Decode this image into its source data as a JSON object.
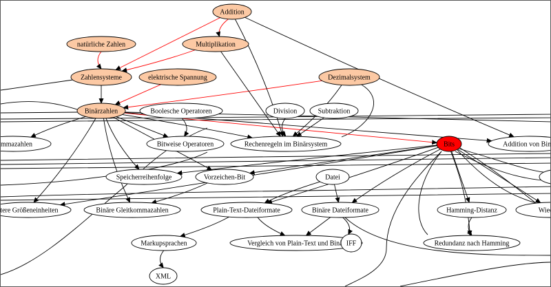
{
  "colors": {
    "highlight_fill": "#fcc9a4",
    "focus_fill": "#ff0000",
    "default_fill": "#ffffff",
    "highlight_edge": "#ff0000",
    "edge": "#000000"
  },
  "nodes": [
    {
      "id": "addition",
      "label": "Addition",
      "style": "highlight"
    },
    {
      "id": "natuerliche",
      "label": "natürliche Zahlen",
      "style": "highlight"
    },
    {
      "id": "multiplikation",
      "label": "Multiplikation",
      "style": "highlight"
    },
    {
      "id": "zahlensysteme",
      "label": "Zahlensysteme",
      "style": "highlight"
    },
    {
      "id": "spannung",
      "label": "elektrische Spannung",
      "style": "highlight"
    },
    {
      "id": "dezimal",
      "label": "Dezimalsystem",
      "style": "highlight"
    },
    {
      "id": "binaerzahlen",
      "label": "Binärzahlen",
      "style": "highlight"
    },
    {
      "id": "boolesche",
      "label": "Boolesche Operatoren",
      "style": "default"
    },
    {
      "id": "division",
      "label": "Division",
      "style": "default"
    },
    {
      "id": "subtraktion",
      "label": "Subtraktion",
      "style": "default"
    },
    {
      "id": "kommazahlen",
      "label": "kommazahlen",
      "style": "default"
    },
    {
      "id": "bitweise",
      "label": "Bitweise Operatoren",
      "style": "default"
    },
    {
      "id": "rechenregeln",
      "label": "Rechenregeln im Binärsystem",
      "style": "default"
    },
    {
      "id": "bits",
      "label": "Bits",
      "style": "focus"
    },
    {
      "id": "additionbin",
      "label": "Addition von Binär",
      "style": "default"
    },
    {
      "id": "speicher",
      "label": "Speicherreihenfolge",
      "style": "default"
    },
    {
      "id": "vorzeichen",
      "label": "Vorzeichen-Bit",
      "style": "default"
    },
    {
      "id": "datei",
      "label": "Datei",
      "style": "default"
    },
    {
      "id": "rightnode",
      "label": "",
      "style": "default"
    },
    {
      "id": "groessen",
      "label": "itere Größeneinheiten",
      "style": "default"
    },
    {
      "id": "gleitkomma",
      "label": "Binäre Gleitkommazahlen",
      "style": "default"
    },
    {
      "id": "plaintext",
      "label": "Plain-Text-Dateiformate",
      "style": "default"
    },
    {
      "id": "binaerdatei",
      "label": "Binäre Dateiformate",
      "style": "default"
    },
    {
      "id": "hamming",
      "label": "Hamming-Distanz",
      "style": "default"
    },
    {
      "id": "wiederbe",
      "label": "Wiederbe",
      "style": "default"
    },
    {
      "id": "markup",
      "label": "Markupsprachen",
      "style": "default"
    },
    {
      "id": "vergleich",
      "label": "Vergleich von Plain-Text und Binär",
      "style": "default"
    },
    {
      "id": "iff",
      "label": "IFF",
      "style": "default"
    },
    {
      "id": "redundanz",
      "label": "Redundanz nach Hamming",
      "style": "default"
    },
    {
      "id": "xml",
      "label": "XML",
      "style": "default"
    }
  ],
  "edges": [
    {
      "from": "addition",
      "to": "multiplikation",
      "highlight": true
    },
    {
      "from": "addition",
      "to": "zahlensysteme",
      "highlight": true
    },
    {
      "from": "multiplikation",
      "to": "zahlensysteme",
      "highlight": true
    },
    {
      "from": "natuerliche",
      "to": "zahlensysteme",
      "highlight": true
    },
    {
      "from": "spannung",
      "to": "binaerzahlen",
      "highlight": true
    },
    {
      "from": "dezimal",
      "to": "binaerzahlen",
      "highlight": true
    },
    {
      "from": "binaerzahlen",
      "to": "bits",
      "highlight": true
    },
    {
      "from": "zahlensysteme",
      "to": "binaerzahlen",
      "highlight": false
    },
    {
      "from": "addition",
      "to": "rechenregeln",
      "highlight": false
    },
    {
      "from": "addition",
      "to": "additionbin",
      "highlight": false
    },
    {
      "from": "multiplikation",
      "to": "rechenregeln",
      "highlight": false
    },
    {
      "from": "dezimal",
      "to": "rechenregeln",
      "highlight": false
    },
    {
      "from": "division",
      "to": "rechenregeln",
      "highlight": false
    },
    {
      "from": "subtraktion",
      "to": "rechenregeln",
      "highlight": false
    },
    {
      "from": "boolesche",
      "to": "bitweise",
      "highlight": false
    },
    {
      "from": "binaerzahlen",
      "to": "kommazahlen",
      "highlight": false
    },
    {
      "from": "binaerzahlen",
      "to": "bitweise",
      "highlight": false
    },
    {
      "from": "binaerzahlen",
      "to": "rechenregeln",
      "highlight": false
    },
    {
      "from": "binaerzahlen",
      "to": "speicher",
      "highlight": false
    },
    {
      "from": "binaerzahlen",
      "to": "vorzeichen",
      "highlight": false
    },
    {
      "from": "binaerzahlen",
      "to": "groessen",
      "highlight": false
    },
    {
      "from": "binaerzahlen",
      "to": "gleitkomma",
      "highlight": false
    },
    {
      "from": "binaerzahlen",
      "to": "additionbin",
      "highlight": false
    },
    {
      "from": "vorzeichen",
      "to": "gleitkomma",
      "highlight": false
    },
    {
      "from": "datei",
      "to": "plaintext",
      "highlight": false
    },
    {
      "from": "datei",
      "to": "binaerdatei",
      "highlight": false
    },
    {
      "from": "plaintext",
      "to": "markup",
      "highlight": false
    },
    {
      "from": "plaintext",
      "to": "vergleich",
      "highlight": false
    },
    {
      "from": "binaerdatei",
      "to": "vergleich",
      "highlight": false
    },
    {
      "from": "binaerdatei",
      "to": "iff",
      "highlight": false
    },
    {
      "from": "markup",
      "to": "xml",
      "highlight": false
    },
    {
      "from": "bits",
      "to": "hamming",
      "highlight": false
    },
    {
      "from": "bits",
      "to": "redundanz",
      "highlight": false
    },
    {
      "from": "bits",
      "to": "speicher",
      "highlight": false
    },
    {
      "from": "bits",
      "to": "vorzeichen",
      "highlight": false
    },
    {
      "from": "bits",
      "to": "plaintext",
      "highlight": false
    },
    {
      "from": "bits",
      "to": "binaerdatei",
      "highlight": false
    },
    {
      "from": "bits",
      "to": "wiederbe",
      "highlight": false
    },
    {
      "from": "bits",
      "to": "groessen",
      "highlight": false
    },
    {
      "from": "hamming",
      "to": "redundanz",
      "highlight": false
    }
  ]
}
